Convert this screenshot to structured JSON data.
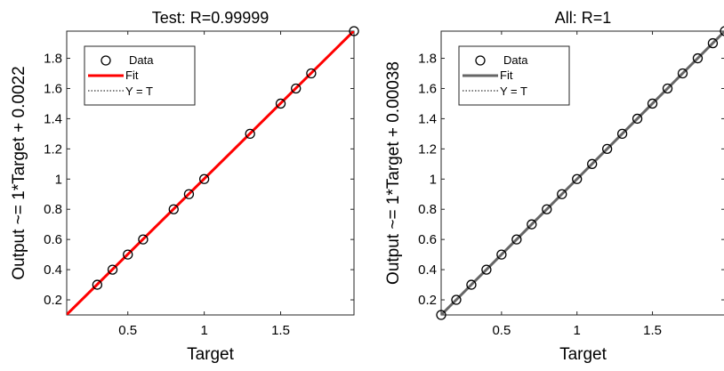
{
  "chart_data": [
    {
      "type": "scatter",
      "title": "Test: R=0.99999",
      "xlabel": "Target",
      "ylabel": "Output ~= 1*Target + 0.0022",
      "xlim": [
        0.1,
        1.98
      ],
      "ylim": [
        0.1,
        1.98
      ],
      "xticks": [
        0.5,
        1,
        1.5
      ],
      "xtick_labels": [
        "0.5",
        "1",
        "1.5"
      ],
      "yticks": [
        0.2,
        0.4,
        0.6,
        0.8,
        1.0,
        1.2,
        1.4,
        1.6,
        1.8
      ],
      "ytick_labels": [
        "0.2",
        "0.4",
        "0.6",
        "0.8",
        "1",
        "1.2",
        "1.4",
        "1.6",
        "1.8"
      ],
      "fit": {
        "slope": 1,
        "intercept": 0.0022,
        "color": "#ff0000"
      },
      "legend": {
        "placement": "top-left",
        "entries": [
          "Data",
          "Fit",
          "Y = T"
        ]
      },
      "grid": false,
      "series": [
        {
          "name": "Data",
          "points": [
            [
              0.3,
              0.3
            ],
            [
              0.4,
              0.4
            ],
            [
              0.5,
              0.5
            ],
            [
              0.6,
              0.6
            ],
            [
              0.8,
              0.8
            ],
            [
              0.9,
              0.9
            ],
            [
              1.0,
              1.0
            ],
            [
              1.3,
              1.3
            ],
            [
              1.5,
              1.5
            ],
            [
              1.6,
              1.6
            ],
            [
              1.7,
              1.7
            ],
            [
              1.98,
              1.98
            ]
          ]
        }
      ]
    },
    {
      "type": "scatter",
      "title": "All: R=1",
      "xlabel": "Target",
      "ylabel": "Output ~= 1*Target + 0.00038",
      "xlim": [
        0.1,
        1.98
      ],
      "ylim": [
        0.1,
        1.98
      ],
      "xticks": [
        0.5,
        1,
        1.5
      ],
      "xtick_labels": [
        "0.5",
        "1",
        "1.5"
      ],
      "yticks": [
        0.2,
        0.4,
        0.6,
        0.8,
        1.0,
        1.2,
        1.4,
        1.6,
        1.8
      ],
      "ytick_labels": [
        "0.2",
        "0.4",
        "0.6",
        "0.8",
        "1",
        "1.2",
        "1.4",
        "1.6",
        "1.8"
      ],
      "fit": {
        "slope": 1,
        "intercept": 0.00038,
        "color": "#666666"
      },
      "legend": {
        "placement": "top-left",
        "entries": [
          "Data",
          "Fit",
          "Y = T"
        ]
      },
      "grid": false,
      "series": [
        {
          "name": "Data",
          "points": [
            [
              0.1,
              0.1
            ],
            [
              0.2,
              0.2
            ],
            [
              0.3,
              0.3
            ],
            [
              0.4,
              0.4
            ],
            [
              0.5,
              0.5
            ],
            [
              0.6,
              0.6
            ],
            [
              0.7,
              0.7
            ],
            [
              0.8,
              0.8
            ],
            [
              0.9,
              0.9
            ],
            [
              1.0,
              1.0
            ],
            [
              1.1,
              1.1
            ],
            [
              1.2,
              1.2
            ],
            [
              1.3,
              1.3
            ],
            [
              1.4,
              1.4
            ],
            [
              1.5,
              1.5
            ],
            [
              1.6,
              1.6
            ],
            [
              1.7,
              1.7
            ],
            [
              1.8,
              1.8
            ],
            [
              1.9,
              1.9
            ],
            [
              1.98,
              1.98
            ]
          ]
        }
      ]
    }
  ]
}
